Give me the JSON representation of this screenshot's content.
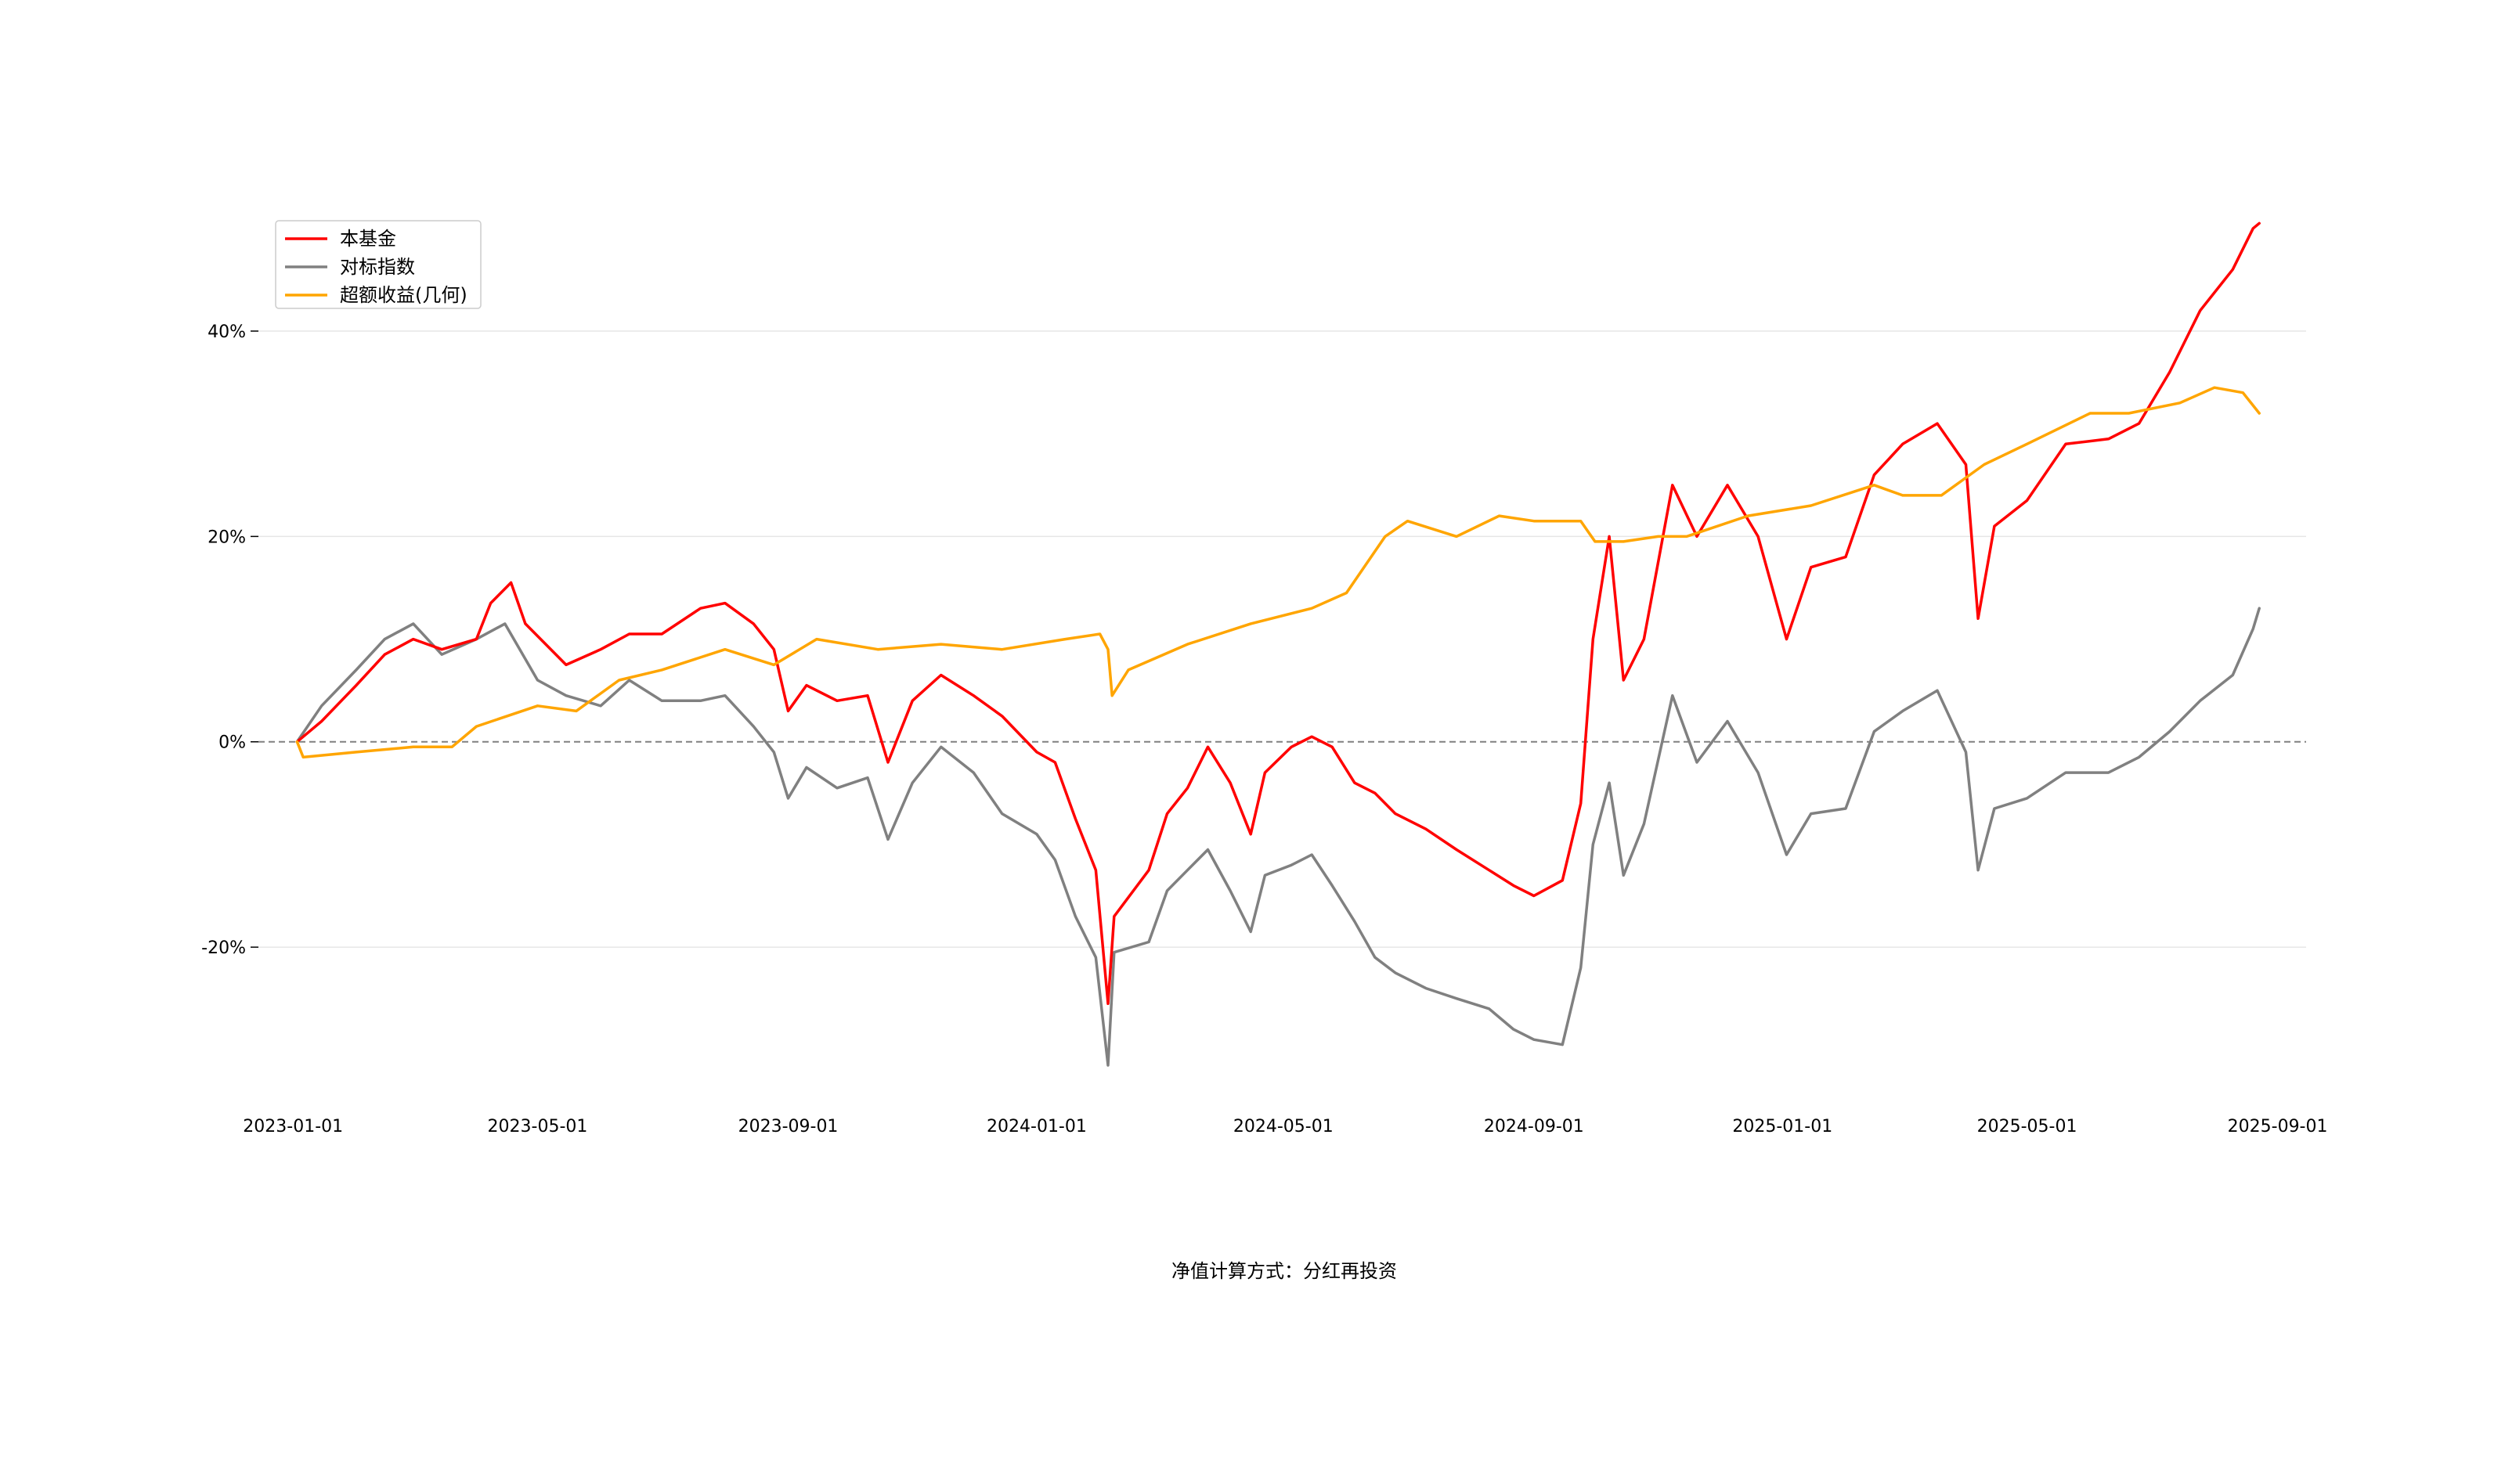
{
  "chart_data": {
    "type": "line",
    "title": "",
    "xlabel": "净值计算方式：分红再投资",
    "ylabel": "",
    "xlim": [
      "2022-12-15",
      "2025-09-15"
    ],
    "ylim": [
      -0.36,
      0.57
    ],
    "x_ticks": [
      "2023-01-01",
      "2023-05-01",
      "2023-09-01",
      "2024-01-01",
      "2024-05-01",
      "2024-09-01",
      "2025-01-01",
      "2025-05-01",
      "2025-09-01"
    ],
    "y_ticks": [
      -0.2,
      0,
      0.2,
      0.4
    ],
    "y_tick_labels": [
      "-20%",
      "0%",
      "20%",
      "40%"
    ],
    "grid": "horizontal",
    "zero_line": true,
    "legend_position": "upper-left",
    "series": [
      {
        "name": "本基金",
        "color": "#ff0000",
        "points": [
          [
            "2023-01-03",
            0.0
          ],
          [
            "2023-01-15",
            0.02
          ],
          [
            "2023-02-01",
            0.055
          ],
          [
            "2023-02-15",
            0.085
          ],
          [
            "2023-03-01",
            0.1
          ],
          [
            "2023-03-15",
            0.09
          ],
          [
            "2023-04-01",
            0.1
          ],
          [
            "2023-04-08",
            0.135
          ],
          [
            "2023-04-18",
            0.155
          ],
          [
            "2023-04-25",
            0.115
          ],
          [
            "2023-05-05",
            0.095
          ],
          [
            "2023-05-15",
            0.075
          ],
          [
            "2023-06-01",
            0.09
          ],
          [
            "2023-06-15",
            0.105
          ],
          [
            "2023-07-01",
            0.105
          ],
          [
            "2023-07-20",
            0.13
          ],
          [
            "2023-08-01",
            0.135
          ],
          [
            "2023-08-15",
            0.115
          ],
          [
            "2023-08-25",
            0.09
          ],
          [
            "2023-09-01",
            0.03
          ],
          [
            "2023-09-10",
            0.055
          ],
          [
            "2023-09-25",
            0.04
          ],
          [
            "2023-10-10",
            0.045
          ],
          [
            "2023-10-20",
            -0.02
          ],
          [
            "2023-11-01",
            0.04
          ],
          [
            "2023-11-15",
            0.065
          ],
          [
            "2023-12-01",
            0.045
          ],
          [
            "2023-12-15",
            0.025
          ],
          [
            "2024-01-01",
            -0.01
          ],
          [
            "2024-01-10",
            -0.02
          ],
          [
            "2024-01-20",
            -0.075
          ],
          [
            "2024-01-30",
            -0.125
          ],
          [
            "2024-02-05",
            -0.255
          ],
          [
            "2024-02-08",
            -0.17
          ],
          [
            "2024-02-25",
            -0.125
          ],
          [
            "2024-03-05",
            -0.07
          ],
          [
            "2024-03-15",
            -0.045
          ],
          [
            "2024-03-25",
            -0.005
          ],
          [
            "2024-04-05",
            -0.04
          ],
          [
            "2024-04-15",
            -0.09
          ],
          [
            "2024-04-22",
            -0.03
          ],
          [
            "2024-05-05",
            -0.005
          ],
          [
            "2024-05-15",
            0.005
          ],
          [
            "2024-05-25",
            -0.005
          ],
          [
            "2024-06-05",
            -0.04
          ],
          [
            "2024-06-15",
            -0.05
          ],
          [
            "2024-06-25",
            -0.07
          ],
          [
            "2024-07-10",
            -0.085
          ],
          [
            "2024-07-25",
            -0.105
          ],
          [
            "2024-08-10",
            -0.125
          ],
          [
            "2024-08-22",
            -0.14
          ],
          [
            "2024-09-01",
            -0.15
          ],
          [
            "2024-09-15",
            -0.135
          ],
          [
            "2024-09-24",
            -0.06
          ],
          [
            "2024-09-30",
            0.1
          ],
          [
            "2024-10-08",
            0.2
          ],
          [
            "2024-10-15",
            0.06
          ],
          [
            "2024-10-25",
            0.1
          ],
          [
            "2024-11-08",
            0.25
          ],
          [
            "2024-11-20",
            0.2
          ],
          [
            "2024-12-05",
            0.25
          ],
          [
            "2024-12-20",
            0.2
          ],
          [
            "2025-01-03",
            0.1
          ],
          [
            "2025-01-15",
            0.17
          ],
          [
            "2025-02-01",
            0.18
          ],
          [
            "2025-02-15",
            0.26
          ],
          [
            "2025-03-01",
            0.29
          ],
          [
            "2025-03-18",
            0.31
          ],
          [
            "2025-04-01",
            0.27
          ],
          [
            "2025-04-07",
            0.12
          ],
          [
            "2025-04-15",
            0.21
          ],
          [
            "2025-05-01",
            0.235
          ],
          [
            "2025-05-20",
            0.29
          ],
          [
            "2025-06-10",
            0.295
          ],
          [
            "2025-06-25",
            0.31
          ],
          [
            "2025-07-10",
            0.36
          ],
          [
            "2025-07-25",
            0.42
          ],
          [
            "2025-08-10",
            0.46
          ],
          [
            "2025-08-20",
            0.5
          ],
          [
            "2025-08-23",
            0.505
          ]
        ]
      },
      {
        "name": "对标指数",
        "color": "#808080",
        "points": [
          [
            "2023-01-03",
            0.0
          ],
          [
            "2023-01-15",
            0.035
          ],
          [
            "2023-02-01",
            0.07
          ],
          [
            "2023-02-15",
            0.1
          ],
          [
            "2023-03-01",
            0.115
          ],
          [
            "2023-03-15",
            0.085
          ],
          [
            "2023-04-01",
            0.1
          ],
          [
            "2023-04-15",
            0.115
          ],
          [
            "2023-05-01",
            0.06
          ],
          [
            "2023-05-15",
            0.045
          ],
          [
            "2023-06-01",
            0.035
          ],
          [
            "2023-06-15",
            0.06
          ],
          [
            "2023-07-01",
            0.04
          ],
          [
            "2023-07-20",
            0.04
          ],
          [
            "2023-08-01",
            0.045
          ],
          [
            "2023-08-15",
            0.015
          ],
          [
            "2023-08-25",
            -0.01
          ],
          [
            "2023-09-01",
            -0.055
          ],
          [
            "2023-09-10",
            -0.025
          ],
          [
            "2023-09-25",
            -0.045
          ],
          [
            "2023-10-10",
            -0.035
          ],
          [
            "2023-10-20",
            -0.095
          ],
          [
            "2023-11-01",
            -0.04
          ],
          [
            "2023-11-15",
            -0.005
          ],
          [
            "2023-12-01",
            -0.03
          ],
          [
            "2023-12-15",
            -0.07
          ],
          [
            "2024-01-01",
            -0.09
          ],
          [
            "2024-01-10",
            -0.115
          ],
          [
            "2024-01-20",
            -0.17
          ],
          [
            "2024-01-30",
            -0.21
          ],
          [
            "2024-02-05",
            -0.315
          ],
          [
            "2024-02-08",
            -0.205
          ],
          [
            "2024-02-25",
            -0.195
          ],
          [
            "2024-03-05",
            -0.145
          ],
          [
            "2024-03-15",
            -0.125
          ],
          [
            "2024-03-25",
            -0.105
          ],
          [
            "2024-04-05",
            -0.145
          ],
          [
            "2024-04-15",
            -0.185
          ],
          [
            "2024-04-22",
            -0.13
          ],
          [
            "2024-05-05",
            -0.12
          ],
          [
            "2024-05-15",
            -0.11
          ],
          [
            "2024-05-25",
            -0.14
          ],
          [
            "2024-06-05",
            -0.175
          ],
          [
            "2024-06-15",
            -0.21
          ],
          [
            "2024-06-25",
            -0.225
          ],
          [
            "2024-07-10",
            -0.24
          ],
          [
            "2024-07-25",
            -0.25
          ],
          [
            "2024-08-10",
            -0.26
          ],
          [
            "2024-08-22",
            -0.28
          ],
          [
            "2024-09-01",
            -0.29
          ],
          [
            "2024-09-15",
            -0.295
          ],
          [
            "2024-09-24",
            -0.22
          ],
          [
            "2024-09-30",
            -0.1
          ],
          [
            "2024-10-08",
            -0.04
          ],
          [
            "2024-10-15",
            -0.13
          ],
          [
            "2024-10-25",
            -0.08
          ],
          [
            "2024-11-08",
            0.045
          ],
          [
            "2024-11-20",
            -0.02
          ],
          [
            "2024-12-05",
            0.02
          ],
          [
            "2024-12-20",
            -0.03
          ],
          [
            "2025-01-03",
            -0.11
          ],
          [
            "2025-01-15",
            -0.07
          ],
          [
            "2025-02-01",
            -0.065
          ],
          [
            "2025-02-15",
            0.01
          ],
          [
            "2025-03-01",
            0.03
          ],
          [
            "2025-03-18",
            0.05
          ],
          [
            "2025-04-01",
            -0.01
          ],
          [
            "2025-04-07",
            -0.125
          ],
          [
            "2025-04-15",
            -0.065
          ],
          [
            "2025-05-01",
            -0.055
          ],
          [
            "2025-05-20",
            -0.03
          ],
          [
            "2025-06-10",
            -0.03
          ],
          [
            "2025-06-25",
            -0.015
          ],
          [
            "2025-07-10",
            0.01
          ],
          [
            "2025-07-25",
            0.04
          ],
          [
            "2025-08-10",
            0.065
          ],
          [
            "2025-08-20",
            0.11
          ],
          [
            "2025-08-23",
            0.13
          ]
        ]
      },
      {
        "name": "超额收益(几何)",
        "color": "#ffa500",
        "points": [
          [
            "2023-01-03",
            0.0
          ],
          [
            "2023-01-06",
            -0.015
          ],
          [
            "2023-02-01",
            -0.01
          ],
          [
            "2023-03-01",
            -0.005
          ],
          [
            "2023-03-20",
            -0.005
          ],
          [
            "2023-04-01",
            0.015
          ],
          [
            "2023-05-01",
            0.035
          ],
          [
            "2023-05-20",
            0.03
          ],
          [
            "2023-06-10",
            0.06
          ],
          [
            "2023-07-01",
            0.07
          ],
          [
            "2023-08-01",
            0.09
          ],
          [
            "2023-08-25",
            0.075
          ],
          [
            "2023-09-15",
            0.1
          ],
          [
            "2023-10-15",
            0.09
          ],
          [
            "2023-11-15",
            0.095
          ],
          [
            "2023-12-15",
            0.09
          ],
          [
            "2024-01-15",
            0.1
          ],
          [
            "2024-02-01",
            0.105
          ],
          [
            "2024-02-05",
            0.09
          ],
          [
            "2024-02-07",
            0.045
          ],
          [
            "2024-02-15",
            0.07
          ],
          [
            "2024-03-15",
            0.095
          ],
          [
            "2024-04-15",
            0.115
          ],
          [
            "2024-05-15",
            0.13
          ],
          [
            "2024-06-01",
            0.145
          ],
          [
            "2024-06-20",
            0.2
          ],
          [
            "2024-07-01",
            0.215
          ],
          [
            "2024-07-25",
            0.2
          ],
          [
            "2024-08-15",
            0.22
          ],
          [
            "2024-09-01",
            0.215
          ],
          [
            "2024-09-24",
            0.215
          ],
          [
            "2024-10-01",
            0.195
          ],
          [
            "2024-10-15",
            0.195
          ],
          [
            "2024-11-01",
            0.2
          ],
          [
            "2024-11-15",
            0.2
          ],
          [
            "2024-12-15",
            0.22
          ],
          [
            "2025-01-15",
            0.23
          ],
          [
            "2025-02-15",
            0.25
          ],
          [
            "2025-03-01",
            0.24
          ],
          [
            "2025-03-20",
            0.24
          ],
          [
            "2025-04-10",
            0.27
          ],
          [
            "2025-05-01",
            0.29
          ],
          [
            "2025-06-01",
            0.32
          ],
          [
            "2025-06-20",
            0.32
          ],
          [
            "2025-07-15",
            0.33
          ],
          [
            "2025-08-01",
            0.345
          ],
          [
            "2025-08-15",
            0.34
          ],
          [
            "2025-08-23",
            0.32
          ]
        ]
      }
    ]
  }
}
